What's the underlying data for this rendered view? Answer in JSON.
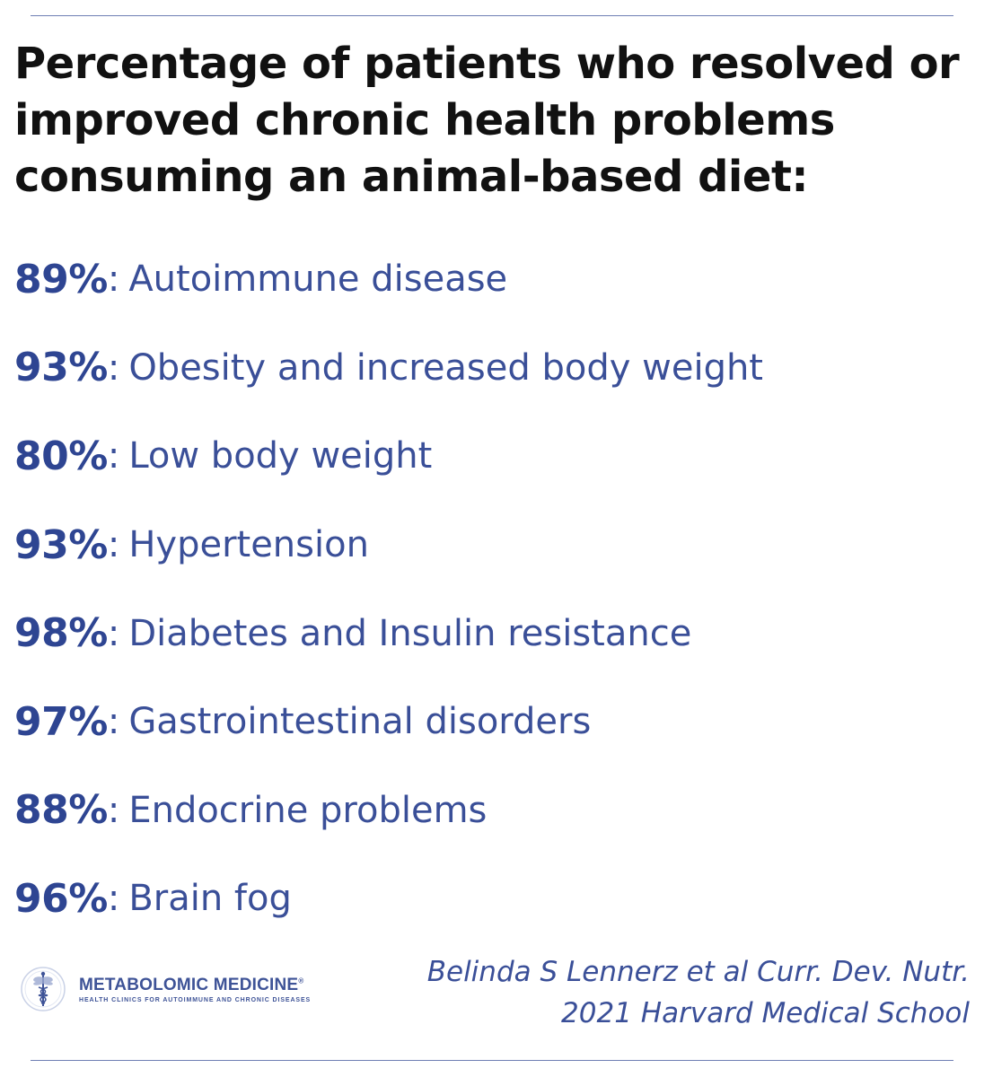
{
  "title_lines": [
    "Percentage of patients who resolved or",
    "improved chronic health problems",
    "consuming an animal-based diet:"
  ],
  "stats": [
    {
      "percent": "89%",
      "condition": "Autoimmune disease",
      "value": 89
    },
    {
      "percent": "93%",
      "condition": "Obesity and increased body weight",
      "value": 93
    },
    {
      "percent": "80%",
      "condition": "Low body weight",
      "value": 80
    },
    {
      "percent": "93%",
      "condition": "Hypertension",
      "value": 93
    },
    {
      "percent": "98%",
      "condition": "Diabetes and Insulin resistance",
      "value": 98
    },
    {
      "percent": "97%",
      "condition": "Gastrointestinal disorders",
      "value": 97
    },
    {
      "percent": "88%",
      "condition": "Endocrine problems",
      "value": 88
    },
    {
      "percent": "96%",
      "condition": "Brain fog",
      "value": 96
    }
  ],
  "separator": ":",
  "logo": {
    "icon": "caduceus-icon",
    "name": "METABOLOMIC MEDICINE",
    "registered": "®",
    "tagline": "HEALTH CLINICS FOR AUTOIMMUNE AND CHRONIC DISEASES"
  },
  "citation_lines": [
    "Belinda S Lennerz et al Curr. Dev. Nutr.",
    "2021 Harvard Medical School"
  ],
  "colors": {
    "title": "#111111",
    "accent": "#2e4592",
    "rule": "#6f7fb4"
  }
}
